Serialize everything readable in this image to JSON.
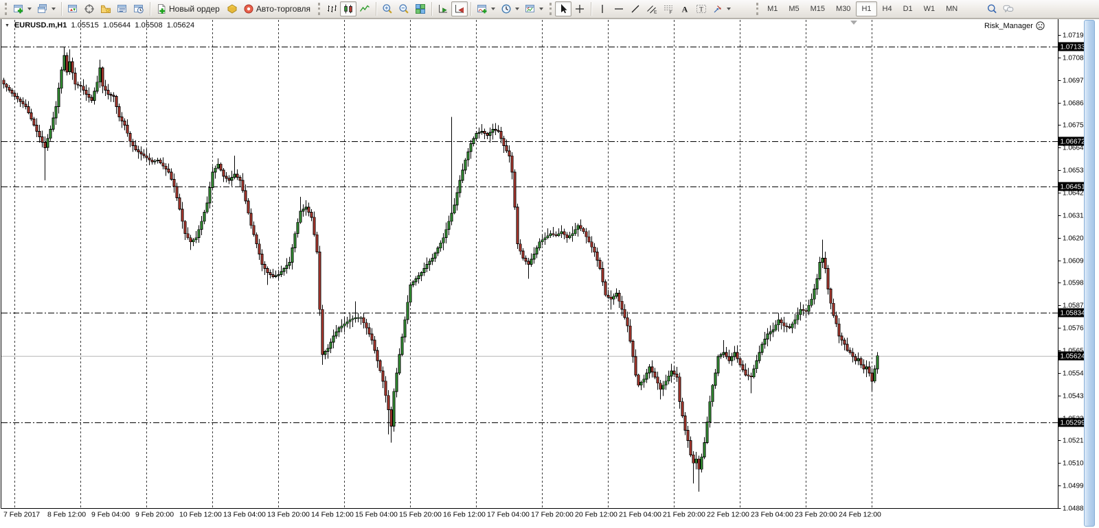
{
  "toolbar": {
    "items": [
      {
        "type": "handle"
      },
      {
        "type": "btn",
        "name": "new-chart",
        "icon": "new-chart",
        "dropdown": true
      },
      {
        "type": "btn",
        "name": "profiles",
        "icon": "profiles",
        "dropdown": true
      },
      {
        "type": "sep"
      },
      {
        "type": "btn",
        "name": "market-watch",
        "icon": "market-watch"
      },
      {
        "type": "btn",
        "name": "data-window",
        "icon": "data-window"
      },
      {
        "type": "btn",
        "name": "navigator",
        "icon": "navigator"
      },
      {
        "type": "btn",
        "name": "terminal",
        "icon": "terminal"
      },
      {
        "type": "btn",
        "name": "strategy-tester",
        "icon": "strategy-tester"
      },
      {
        "type": "sep"
      },
      {
        "type": "btn",
        "name": "new-order",
        "icon": "new-order",
        "label": "Новый ордер"
      },
      {
        "type": "btn",
        "name": "metaeditor",
        "icon": "metaeditor"
      },
      {
        "type": "btn",
        "name": "autotrading",
        "icon": "autotrading",
        "label": "Авто-торговля"
      },
      {
        "type": "handle"
      },
      {
        "type": "btn",
        "name": "chart-bars",
        "icon": "chart-bars"
      },
      {
        "type": "btn",
        "name": "chart-candles",
        "icon": "chart-candles",
        "pressed": true
      },
      {
        "type": "btn",
        "name": "chart-line",
        "icon": "chart-line"
      },
      {
        "type": "sep"
      },
      {
        "type": "btn",
        "name": "zoom-in",
        "icon": "zoom-in"
      },
      {
        "type": "btn",
        "name": "zoom-out",
        "icon": "zoom-out"
      },
      {
        "type": "btn",
        "name": "tile-windows",
        "icon": "tile-windows"
      },
      {
        "type": "sep"
      },
      {
        "type": "btn",
        "name": "auto-scroll",
        "icon": "auto-scroll"
      },
      {
        "type": "btn",
        "name": "chart-shift",
        "icon": "chart-shift",
        "pressed": true
      },
      {
        "type": "sep"
      },
      {
        "type": "btn",
        "name": "indicators",
        "icon": "indicators",
        "dropdown": true
      },
      {
        "type": "btn",
        "name": "periods",
        "icon": "periods",
        "dropdown": true
      },
      {
        "type": "btn",
        "name": "templates",
        "icon": "templates",
        "dropdown": true
      },
      {
        "type": "handle"
      },
      {
        "type": "btn",
        "name": "cursor",
        "icon": "cursor",
        "pressed": true
      },
      {
        "type": "btn",
        "name": "crosshair",
        "icon": "crosshair"
      },
      {
        "type": "sep"
      },
      {
        "type": "btn",
        "name": "vertical-line",
        "icon": "vertical-line"
      },
      {
        "type": "btn",
        "name": "horizontal-line",
        "icon": "horizontal-line"
      },
      {
        "type": "btn",
        "name": "trendline",
        "icon": "trendline"
      },
      {
        "type": "btn",
        "name": "equidistant-channel",
        "icon": "equidistant-channel"
      },
      {
        "type": "btn",
        "name": "fibonacci",
        "icon": "fibonacci"
      },
      {
        "type": "btn",
        "name": "text",
        "icon": "text"
      },
      {
        "type": "btn",
        "name": "text-label",
        "icon": "text-label"
      },
      {
        "type": "btn",
        "name": "shapes",
        "icon": "shapes",
        "dropdown": true
      },
      {
        "type": "gap",
        "w": 28
      },
      {
        "type": "handle"
      },
      {
        "type": "tf",
        "label": "M1"
      },
      {
        "type": "tf",
        "label": "M5"
      },
      {
        "type": "tf",
        "label": "M15"
      },
      {
        "type": "tf",
        "label": "M30"
      },
      {
        "type": "tf",
        "label": "H1",
        "pressed": true
      },
      {
        "type": "tf",
        "label": "H4"
      },
      {
        "type": "tf",
        "label": "D1"
      },
      {
        "type": "tf",
        "label": "W1"
      },
      {
        "type": "tf",
        "label": "MN"
      },
      {
        "type": "btn",
        "name": "search",
        "icon": "search",
        "align": "right"
      },
      {
        "type": "btn",
        "name": "chat",
        "icon": "chat"
      },
      {
        "type": "gap",
        "w": 120
      }
    ]
  },
  "chart": {
    "title": {
      "symbol_period": "EURUSD.m,H1",
      "open": "1.05515",
      "high": "1.05644",
      "low": "1.05508",
      "close": "1.05624"
    },
    "ea": {
      "label": "Risk_Manager",
      "mood": "sad"
    }
  },
  "chart_data": {
    "type": "candlestick",
    "symbol": "EURUSD.m",
    "timeframe": "H1",
    "bars_total": 319,
    "price_range": {
      "top": 1.0719,
      "bottom": 1.0488,
      "tick_step": 0.0011
    },
    "price_ticks": [
      "1.07190",
      "1.07080",
      "1.06970",
      "1.06860",
      "1.06750",
      "1.06640",
      "1.06530",
      "1.06420",
      "1.06310",
      "1.06200",
      "1.06090",
      "1.05980",
      "1.05870",
      "1.05760",
      "1.05650",
      "1.05540",
      "1.05430",
      "1.05320",
      "1.05210",
      "1.05100",
      "1.04990",
      "1.04880"
    ],
    "levels": [
      1.07133,
      1.06672,
      1.06451,
      1.05834,
      1.05299
    ],
    "current_price": 1.05624,
    "axis_tags": [
      "1.07133",
      "1.06672",
      "1.06451",
      "1.05834",
      "1.05624",
      "1.05299"
    ],
    "last_bar": {
      "open": 1.05515,
      "high": 1.05644,
      "low": 1.05508,
      "close": 1.05624
    },
    "time_labels": [
      {
        "bar": 0,
        "text": "7 Feb 2017"
      },
      {
        "bar": 16,
        "text": "8 Feb 12:00"
      },
      {
        "bar": 32,
        "text": "9 Feb 04:00"
      },
      {
        "bar": 48,
        "text": "9 Feb 20:00"
      },
      {
        "bar": 64,
        "text": "10 Feb 12:00"
      },
      {
        "bar": 80,
        "text": "13 Feb 04:00"
      },
      {
        "bar": 96,
        "text": "13 Feb 20:00"
      },
      {
        "bar": 112,
        "text": "14 Feb 12:00"
      },
      {
        "bar": 128,
        "text": "15 Feb 04:00"
      },
      {
        "bar": 144,
        "text": "15 Feb 20:00"
      },
      {
        "bar": 160,
        "text": "16 Feb 12:00"
      },
      {
        "bar": 176,
        "text": "17 Feb 04:00"
      },
      {
        "bar": 192,
        "text": "17 Feb 20:00"
      },
      {
        "bar": 208,
        "text": "20 Feb 12:00"
      },
      {
        "bar": 224,
        "text": "21 Feb 04:00"
      },
      {
        "bar": 240,
        "text": "21 Feb 20:00"
      },
      {
        "bar": 256,
        "text": "22 Feb 12:00"
      },
      {
        "bar": 272,
        "text": "23 Feb 04:00"
      },
      {
        "bar": 288,
        "text": "23 Feb 20:00"
      },
      {
        "bar": 304,
        "text": "24 Feb 12:00"
      }
    ],
    "day_separator_bars": [
      4,
      28,
      52,
      76,
      100,
      124,
      148,
      172,
      196,
      220,
      244,
      268,
      292,
      316
    ],
    "close_keypoints": [
      [
        0,
        1.0695
      ],
      [
        2,
        1.0692
      ],
      [
        4,
        1.0689
      ],
      [
        8,
        1.0684
      ],
      [
        12,
        1.0672
      ],
      [
        15,
        1.0664
      ],
      [
        17,
        1.0673
      ],
      [
        19,
        1.0684
      ],
      [
        21,
        1.0702
      ],
      [
        22,
        1.0709
      ],
      [
        23,
        1.0701
      ],
      [
        24,
        1.0706
      ],
      [
        26,
        1.0695
      ],
      [
        28,
        1.0694
      ],
      [
        30,
        1.069
      ],
      [
        32,
        1.0687
      ],
      [
        34,
        1.0696
      ],
      [
        35,
        1.0703
      ],
      [
        36,
        1.0694
      ],
      [
        38,
        1.069
      ],
      [
        40,
        1.0689
      ],
      [
        42,
        1.0679
      ],
      [
        44,
        1.0675
      ],
      [
        46,
        1.0667
      ],
      [
        48,
        1.0663
      ],
      [
        50,
        1.0661
      ],
      [
        52,
        1.0659
      ],
      [
        54,
        1.0657
      ],
      [
        56,
        1.0658
      ],
      [
        58,
        1.0655
      ],
      [
        60,
        1.0652
      ],
      [
        62,
        1.0645
      ],
      [
        64,
        1.0634
      ],
      [
        66,
        1.0622
      ],
      [
        68,
        1.0618
      ],
      [
        70,
        1.062
      ],
      [
        72,
        1.0628
      ],
      [
        74,
        1.0637
      ],
      [
        76,
        1.0652
      ],
      [
        78,
        1.0656
      ],
      [
        80,
        1.065
      ],
      [
        82,
        1.0648
      ],
      [
        84,
        1.0651
      ],
      [
        86,
        1.0648
      ],
      [
        88,
        1.0638
      ],
      [
        90,
        1.0626
      ],
      [
        92,
        1.0617
      ],
      [
        94,
        1.0607
      ],
      [
        96,
        1.0603
      ],
      [
        98,
        1.0601
      ],
      [
        100,
        1.0602
      ],
      [
        102,
        1.0605
      ],
      [
        104,
        1.0608
      ],
      [
        106,
        1.0622
      ],
      [
        108,
        1.0633
      ],
      [
        110,
        1.0635
      ],
      [
        112,
        1.063
      ],
      [
        114,
        1.0613
      ],
      [
        115,
        1.0585
      ],
      [
        116,
        1.0563
      ],
      [
        118,
        1.0566
      ],
      [
        120,
        1.0572
      ],
      [
        122,
        1.0576
      ],
      [
        124,
        1.0578
      ],
      [
        126,
        1.058
      ],
      [
        128,
        1.0581
      ],
      [
        130,
        1.0581
      ],
      [
        132,
        1.0576
      ],
      [
        134,
        1.057
      ],
      [
        136,
        1.056
      ],
      [
        138,
        1.055
      ],
      [
        140,
        1.0536
      ],
      [
        141,
        1.0528
      ],
      [
        142,
        1.0545
      ],
      [
        144,
        1.0563
      ],
      [
        146,
        1.058
      ],
      [
        148,
        1.0597
      ],
      [
        150,
        1.06
      ],
      [
        152,
        1.0603
      ],
      [
        154,
        1.0607
      ],
      [
        156,
        1.061
      ],
      [
        158,
        1.0615
      ],
      [
        160,
        1.062
      ],
      [
        162,
        1.0628
      ],
      [
        164,
        1.0636
      ],
      [
        166,
        1.0648
      ],
      [
        168,
        1.0658
      ],
      [
        170,
        1.0666
      ],
      [
        172,
        1.0671
      ],
      [
        174,
        1.0672
      ],
      [
        176,
        1.067
      ],
      [
        178,
        1.0673
      ],
      [
        180,
        1.0672
      ],
      [
        182,
        1.0665
      ],
      [
        184,
        1.066
      ],
      [
        185,
        1.0652
      ],
      [
        186,
        1.0635
      ],
      [
        187,
        1.0617
      ],
      [
        189,
        1.061
      ],
      [
        191,
        1.0607
      ],
      [
        193,
        1.0612
      ],
      [
        195,
        1.0618
      ],
      [
        197,
        1.062
      ],
      [
        199,
        1.0622
      ],
      [
        201,
        1.0621
      ],
      [
        203,
        1.0623
      ],
      [
        205,
        1.062
      ],
      [
        207,
        1.0622
      ],
      [
        209,
        1.0626
      ],
      [
        211,
        1.0623
      ],
      [
        213,
        1.0618
      ],
      [
        215,
        1.0613
      ],
      [
        217,
        1.0605
      ],
      [
        219,
        1.0592
      ],
      [
        221,
        1.059
      ],
      [
        223,
        1.0593
      ],
      [
        225,
        1.0585
      ],
      [
        227,
        1.0577
      ],
      [
        229,
        1.0562
      ],
      [
        230,
        1.0553
      ],
      [
        231,
        1.0548
      ],
      [
        233,
        1.0551
      ],
      [
        235,
        1.0557
      ],
      [
        237,
        1.0552
      ],
      [
        239,
        1.0546
      ],
      [
        241,
        1.055
      ],
      [
        243,
        1.0555
      ],
      [
        245,
        1.0552
      ],
      [
        246,
        1.054
      ],
      [
        247,
        1.0533
      ],
      [
        248,
        1.0526
      ],
      [
        249,
        1.0521
      ],
      [
        250,
        1.0514
      ],
      [
        251,
        1.051
      ],
      [
        252,
        1.0512
      ],
      [
        253,
        1.0507
      ],
      [
        254,
        1.0513
      ],
      [
        255,
        1.052
      ],
      [
        256,
        1.053
      ],
      [
        257,
        1.054
      ],
      [
        258,
        1.0548
      ],
      [
        259,
        1.0554
      ],
      [
        260,
        1.0562
      ],
      [
        262,
        1.0564
      ],
      [
        264,
        1.056
      ],
      [
        266,
        1.0564
      ],
      [
        268,
        1.0558
      ],
      [
        270,
        1.0553
      ],
      [
        272,
        1.0552
      ],
      [
        274,
        1.056
      ],
      [
        276,
        1.0568
      ],
      [
        278,
        1.0573
      ],
      [
        280,
        1.0575
      ],
      [
        282,
        1.058
      ],
      [
        284,
        1.0577
      ],
      [
        286,
        1.0576
      ],
      [
        288,
        1.058
      ],
      [
        290,
        1.0585
      ],
      [
        292,
        1.0584
      ],
      [
        294,
        1.059
      ],
      [
        296,
        1.06
      ],
      [
        297,
        1.0608
      ],
      [
        298,
        1.061
      ],
      [
        299,
        1.0605
      ],
      [
        300,
        1.0595
      ],
      [
        301,
        1.0588
      ],
      [
        302,
        1.0582
      ],
      [
        303,
        1.0578
      ],
      [
        304,
        1.0572
      ],
      [
        305,
        1.057
      ],
      [
        306,
        1.0568
      ],
      [
        307,
        1.0565
      ],
      [
        308,
        1.0564
      ],
      [
        309,
        1.0562
      ],
      [
        310,
        1.056
      ],
      [
        311,
        1.0561
      ],
      [
        312,
        1.0558
      ],
      [
        313,
        1.0556
      ],
      [
        314,
        1.0557
      ],
      [
        315,
        1.0554
      ],
      [
        316,
        1.055
      ],
      [
        317,
        1.0556
      ],
      [
        318,
        1.05624
      ]
    ],
    "wick_spikes": [
      {
        "bar": 15,
        "low": 1.0648
      },
      {
        "bar": 22,
        "high": 1.07133
      },
      {
        "bar": 24,
        "high": 1.0712
      },
      {
        "bar": 35,
        "high": 1.0707
      },
      {
        "bar": 68,
        "low": 1.0614
      },
      {
        "bar": 84,
        "high": 1.066
      },
      {
        "bar": 96,
        "low": 1.0597
      },
      {
        "bar": 108,
        "high": 1.064
      },
      {
        "bar": 116,
        "low": 1.0558
      },
      {
        "bar": 128,
        "high": 1.0589
      },
      {
        "bar": 140,
        "low": 1.0524
      },
      {
        "bar": 141,
        "low": 1.052
      },
      {
        "bar": 163,
        "high": 1.0679
      },
      {
        "bar": 181,
        "high": 1.0669
      },
      {
        "bar": 191,
        "low": 1.06
      },
      {
        "bar": 221,
        "low": 1.0585
      },
      {
        "bar": 239,
        "low": 1.0541
      },
      {
        "bar": 251,
        "low": 1.05
      },
      {
        "bar": 253,
        "low": 1.0496
      },
      {
        "bar": 262,
        "high": 1.057
      },
      {
        "bar": 272,
        "low": 1.0544
      },
      {
        "bar": 298,
        "high": 1.0619
      },
      {
        "bar": 314,
        "low": 1.0552
      },
      {
        "bar": 316,
        "low": 1.0545
      }
    ],
    "colors": {
      "bull": "#3aa33a",
      "bear": "#c23f35",
      "wick": "#000000",
      "background": "#ffffff",
      "level_line": "#000000",
      "price_line": "#b9b9b9",
      "grid_separator": "#3a3a3a",
      "tag_bg": "#000000",
      "tag_text": "#ffffff"
    }
  }
}
